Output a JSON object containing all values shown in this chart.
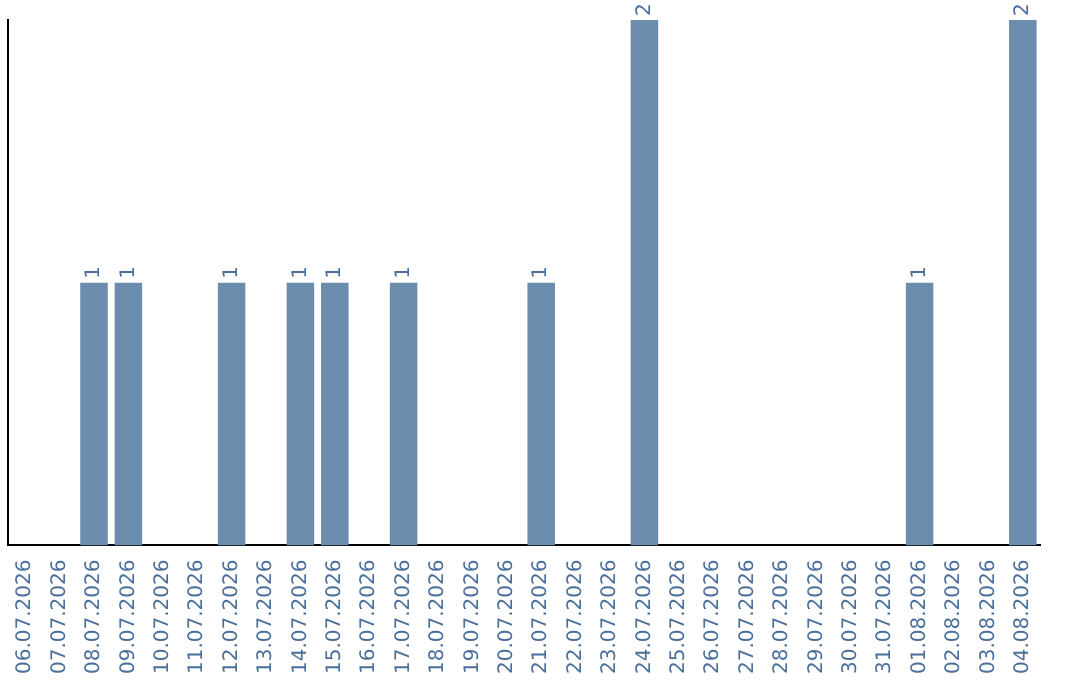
{
  "chart_data": {
    "type": "bar",
    "categories": [
      "06.07.2026",
      "07.07.2026",
      "08.07.2026",
      "09.07.2026",
      "10.07.2026",
      "11.07.2026",
      "12.07.2026",
      "13.07.2026",
      "14.07.2026",
      "15.07.2026",
      "16.07.2026",
      "17.07.2026",
      "18.07.2026",
      "19.07.2026",
      "20.07.2026",
      "21.07.2026",
      "22.07.2026",
      "23.07.2026",
      "24.07.2026",
      "25.07.2026",
      "26.07.2026",
      "27.07.2026",
      "28.07.2026",
      "29.07.2026",
      "30.07.2026",
      "31.07.2026",
      "01.08.2026",
      "02.08.2026",
      "03.08.2026",
      "04.08.2026"
    ],
    "values": [
      0,
      0,
      1,
      1,
      0,
      0,
      1,
      0,
      1,
      1,
      0,
      1,
      0,
      0,
      0,
      1,
      0,
      0,
      2,
      0,
      0,
      0,
      0,
      0,
      0,
      0,
      1,
      0,
      0,
      2
    ],
    "value_labels": [
      null,
      null,
      "1",
      "1",
      null,
      null,
      "1",
      null,
      "1",
      "1",
      null,
      "1",
      null,
      null,
      null,
      "1",
      null,
      null,
      "2",
      null,
      null,
      null,
      null,
      null,
      null,
      null,
      "1",
      null,
      null,
      "2"
    ],
    "color": "#6b8cad",
    "tick_labels": "x",
    "grid": false,
    "legend": false
  }
}
